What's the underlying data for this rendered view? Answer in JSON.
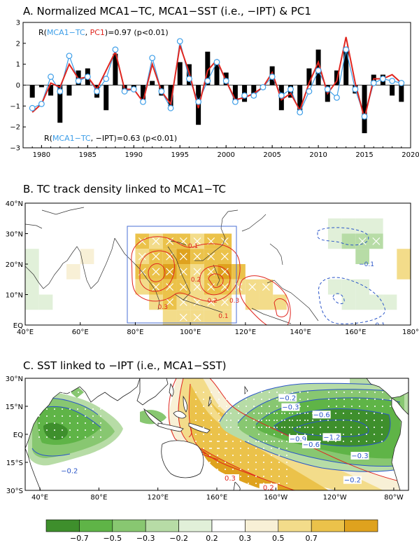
{
  "chart_data": [
    {
      "type": "bar",
      "title": "A. Normalized MCA1−TC, MCA1−SST (i.e., −IPT) & PC1",
      "x": [
        1979,
        1980,
        1981,
        1982,
        1983,
        1984,
        1985,
        1986,
        1987,
        1988,
        1989,
        1990,
        1991,
        1992,
        1993,
        1994,
        1995,
        1996,
        1997,
        1998,
        1999,
        2000,
        2001,
        2002,
        2003,
        2004,
        2005,
        2006,
        2007,
        2008,
        2009,
        2010,
        2011,
        2012,
        2013,
        2014,
        2015,
        2016,
        2017,
        2018,
        2019
      ],
      "xticks": [
        "1980",
        "1985",
        "1990",
        "1995",
        "2000",
        "2005",
        "2010",
        "2015",
        "2020"
      ],
      "xtick_values": [
        1980,
        1985,
        1990,
        1995,
        2000,
        2005,
        2010,
        2015,
        2020
      ],
      "xlim": [
        1978,
        2020
      ],
      "ylim": [
        -3,
        3
      ],
      "yticks": [
        "−3",
        "−2",
        "−1",
        "0",
        "1",
        "2",
        "3"
      ],
      "ytick_values": [
        -3,
        -2,
        -1,
        0,
        1,
        2,
        3
      ],
      "series": [
        {
          "name": "MCA1−TC",
          "kind": "bar",
          "color": "#000000",
          "values": [
            -0.6,
            -0.1,
            -0.5,
            -1.8,
            -0.5,
            0.7,
            0.8,
            -0.6,
            -1.2,
            1.5,
            -0.3,
            -0.2,
            -0.7,
            0.2,
            -0.5,
            -1.0,
            1.1,
            1.0,
            -1.9,
            1.6,
            1.2,
            0.6,
            -0.8,
            -0.8,
            -0.6,
            -0.2,
            0.9,
            -1.2,
            -0.6,
            -1.2,
            0.8,
            1.7,
            -0.8,
            0.7,
            1.7,
            -0.4,
            -2.3,
            0.5,
            0.5,
            -0.5,
            -0.8
          ]
        },
        {
          "name": "MCA1−SST",
          "kind": "markers",
          "color": "#3d9ee8",
          "values": [
            -1.1,
            -0.9,
            0.4,
            -0.3,
            1.4,
            0.2,
            0.4,
            -0.3,
            0.3,
            1.7,
            -0.3,
            -0.2,
            -0.8,
            1.3,
            -0.3,
            -1.1,
            2.1,
            0.3,
            -0.8,
            0.2,
            1.1,
            0.2,
            -0.8,
            -0.5,
            -0.5,
            -0.1,
            0.4,
            -0.5,
            -0.2,
            -1.3,
            -0.3,
            0.7,
            -0.2,
            -0.6,
            1.7,
            -0.2,
            -1.5,
            0.1,
            0.3,
            0.2,
            0.1
          ]
        },
        {
          "name": "PC1",
          "kind": "line",
          "color": "#e0261f",
          "values": [
            -1.3,
            -0.9,
            0.1,
            -0.1,
            1.0,
            0.3,
            0.4,
            -0.2,
            0.7,
            1.6,
            -0.2,
            -0.2,
            -0.8,
            1.0,
            -0.3,
            -0.9,
            1.9,
            0.6,
            -1.1,
            0.7,
            1.2,
            0.2,
            -0.7,
            -0.6,
            -0.4,
            -0.1,
            0.6,
            -0.7,
            -0.4,
            -1.2,
            0.1,
            1.1,
            -0.4,
            0.2,
            2.3,
            0.1,
            -1.6,
            0.3,
            0.3,
            0.5,
            0.1
          ]
        }
      ],
      "annotations": [
        {
          "prefix": "R(",
          "name1": "MCA1−TC",
          "sep": ", ",
          "name2": "PC1",
          "suffix": ")=0.97 (p<0.01)"
        },
        {
          "prefix": "R(",
          "name1": "MCA1−TC",
          "sep": ", ",
          "name2": "−IPT",
          "suffix": ")=0.63 (p<0.01)"
        }
      ]
    },
    {
      "type": "heatmap",
      "title": "B. TC track density linked to MCA1−TC",
      "xticks": [
        "40°E",
        "60°E",
        "80°E",
        "100°E",
        "120°E",
        "140°E",
        "160°E",
        "180°"
      ],
      "xtick_values": [
        40,
        60,
        80,
        100,
        120,
        140,
        160,
        180
      ],
      "yticks": [
        "EQ",
        "10°N",
        "20°N",
        "30°N",
        "40°N"
      ],
      "ytick_values": [
        0,
        10,
        20,
        30,
        40
      ],
      "xlim": [
        40,
        180
      ],
      "ylim": [
        0,
        40
      ],
      "grid_res": 5,
      "cells": [
        [
          80,
          25,
          0.5,
          1
        ],
        [
          85,
          25,
          0.4,
          1
        ],
        [
          90,
          25,
          0.6,
          1
        ],
        [
          95,
          25,
          0.5,
          1
        ],
        [
          100,
          25,
          0.4,
          1
        ],
        [
          105,
          25,
          0.6,
          1
        ],
        [
          110,
          25,
          0.5,
          1
        ],
        [
          80,
          20,
          0.4,
          1
        ],
        [
          85,
          20,
          0.5,
          1
        ],
        [
          90,
          20,
          0.6,
          1
        ],
        [
          95,
          20,
          0.7,
          1
        ],
        [
          100,
          20,
          0.6,
          1
        ],
        [
          105,
          20,
          0.5,
          1
        ],
        [
          110,
          20,
          0.6,
          1
        ],
        [
          80,
          15,
          0.5,
          1
        ],
        [
          85,
          15,
          0.6,
          1
        ],
        [
          90,
          15,
          0.7,
          1
        ],
        [
          95,
          15,
          0.6,
          1
        ],
        [
          100,
          15,
          0.4,
          1
        ],
        [
          105,
          15,
          0.5,
          1
        ],
        [
          110,
          15,
          0.7,
          1
        ],
        [
          115,
          15,
          0.5,
          0
        ],
        [
          80,
          10,
          0.4,
          0
        ],
        [
          85,
          10,
          0.5,
          1
        ],
        [
          90,
          10,
          0.6,
          1
        ],
        [
          95,
          10,
          0.5,
          1
        ],
        [
          100,
          10,
          0.4,
          1
        ],
        [
          105,
          10,
          0.5,
          1
        ],
        [
          110,
          10,
          0.6,
          1
        ],
        [
          115,
          10,
          0.4,
          1
        ],
        [
          120,
          10,
          0.4,
          1
        ],
        [
          125,
          10,
          0.3,
          1
        ],
        [
          85,
          5,
          0.4,
          0
        ],
        [
          90,
          5,
          0.5,
          1
        ],
        [
          95,
          5,
          0.4,
          1
        ],
        [
          100,
          5,
          0.3,
          1
        ],
        [
          105,
          5,
          0.4,
          1
        ],
        [
          110,
          5,
          0.3,
          1
        ],
        [
          120,
          5,
          0.3,
          0
        ],
        [
          125,
          5,
          0.3,
          0
        ],
        [
          130,
          5,
          0.4,
          0
        ],
        [
          90,
          0,
          0.3,
          0
        ],
        [
          95,
          0,
          0.3,
          1
        ],
        [
          100,
          0,
          0.3,
          1
        ],
        [
          105,
          0,
          0.3,
          0
        ],
        [
          110,
          0,
          0.3,
          0
        ],
        [
          60,
          20,
          0.25,
          0
        ],
        [
          55,
          15,
          0.25,
          0
        ],
        [
          40,
          20,
          -0.2,
          0
        ],
        [
          40,
          15,
          -0.2,
          0
        ],
        [
          40,
          10,
          -0.2,
          0
        ],
        [
          40,
          5,
          -0.2,
          0
        ],
        [
          45,
          5,
          -0.2,
          0
        ],
        [
          150,
          25,
          -0.2,
          0
        ],
        [
          155,
          25,
          -0.3,
          0
        ],
        [
          160,
          25,
          -0.4,
          1
        ],
        [
          165,
          25,
          -0.4,
          1
        ],
        [
          160,
          20,
          -0.3,
          0
        ],
        [
          150,
          30,
          -0.2,
          0
        ],
        [
          155,
          30,
          -0.2,
          0
        ],
        [
          160,
          30,
          -0.2,
          0
        ],
        [
          165,
          30,
          -0.2,
          0
        ],
        [
          150,
          10,
          -0.2,
          0
        ],
        [
          155,
          10,
          -0.25,
          0
        ],
        [
          160,
          10,
          -0.2,
          0
        ],
        [
          155,
          5,
          -0.2,
          0
        ],
        [
          160,
          5,
          -0.2,
          0
        ],
        [
          165,
          5,
          -0.2,
          0
        ],
        [
          170,
          5,
          -0.2,
          0
        ],
        [
          175,
          20,
          0.3,
          0
        ],
        [
          175,
          15,
          0.3,
          0
        ]
      ],
      "box": {
        "lon": [
          78,
          118
        ],
        "lat": [
          0,
          33
        ]
      },
      "contour_labels": [
        {
          "text": "0.1",
          "lon": 101,
          "lat": 26,
          "color": "#e0261f"
        },
        {
          "text": "0.2",
          "lon": 102,
          "lat": 15,
          "color": "#e0261f"
        },
        {
          "text": "0.3",
          "lon": 90,
          "lat": 6,
          "color": "#e0261f"
        },
        {
          "text": "0.2",
          "lon": 108,
          "lat": 8,
          "color": "#e0261f"
        },
        {
          "text": "0.3",
          "lon": 116,
          "lat": 8,
          "color": "#e0261f"
        },
        {
          "text": "0.1",
          "lon": 112,
          "lat": 3,
          "color": "#e0261f"
        },
        {
          "text": "0.1",
          "lon": 141,
          "lat": -1,
          "color": "#e0261f"
        },
        {
          "text": "−0.1",
          "lon": 164,
          "lat": 20,
          "color": "#2a55c8"
        },
        {
          "text": "−0.1",
          "lon": 168,
          "lat": 0,
          "color": "#2a55c8"
        }
      ]
    },
    {
      "type": "heatmap",
      "title": "C. SST linked to −IPT (i.e., MCA1−SST)",
      "xticks": [
        "40°E",
        "80°E",
        "120°E",
        "160°E",
        "160°W",
        "120°W",
        "80°W"
      ],
      "xtick_values": [
        40,
        80,
        120,
        160,
        200,
        240,
        280
      ],
      "yticks": [
        "30°S",
        "15°S",
        "EQ",
        "15°N",
        "30°N"
      ],
      "ytick_values": [
        -30,
        -15,
        0,
        15,
        30
      ],
      "xlim": [
        30,
        290
      ],
      "ylim": [
        -30,
        30
      ],
      "contour_labels": [
        {
          "text": "−0.2",
          "lon": 208,
          "lat": 19,
          "color": "#2a55c8"
        },
        {
          "text": "−0.3",
          "lon": 210,
          "lat": 14,
          "color": "#2a55c8"
        },
        {
          "text": "−0.6",
          "lon": 231,
          "lat": 10,
          "color": "#2a55c8"
        },
        {
          "text": "−0.9",
          "lon": 215,
          "lat": -3,
          "color": "#2a55c8"
        },
        {
          "text": "−1.2",
          "lon": 238,
          "lat": -2,
          "color": "#2a55c8"
        },
        {
          "text": "−0.6",
          "lon": 224,
          "lat": -6,
          "color": "#2a55c8"
        },
        {
          "text": "−0.3",
          "lon": 257,
          "lat": -12,
          "color": "#2a55c8"
        },
        {
          "text": "−0.2",
          "lon": 252,
          "lat": -25,
          "color": "#2a55c8"
        },
        {
          "text": "−0.2",
          "lon": 60,
          "lat": -20,
          "color": "#2a55c8"
        },
        {
          "text": "0.3",
          "lon": 169,
          "lat": -24,
          "color": "#e0261f"
        },
        {
          "text": "0.2",
          "lon": 195,
          "lat": -29,
          "color": "#e0261f"
        }
      ]
    }
  ],
  "colorbar": {
    "labels": [
      "−0.7",
      "−0.5",
      "−0.3",
      "−0.2",
      "0.2",
      "0.3",
      "0.5",
      "0.7"
    ],
    "colors": [
      "#3e8f2c",
      "#5fb447",
      "#88c771",
      "#b7dca6",
      "#e1f0d9",
      "#ffffff",
      "#f8f0d6",
      "#f3dc8a",
      "#ebc24a",
      "#dfa21e"
    ]
  }
}
